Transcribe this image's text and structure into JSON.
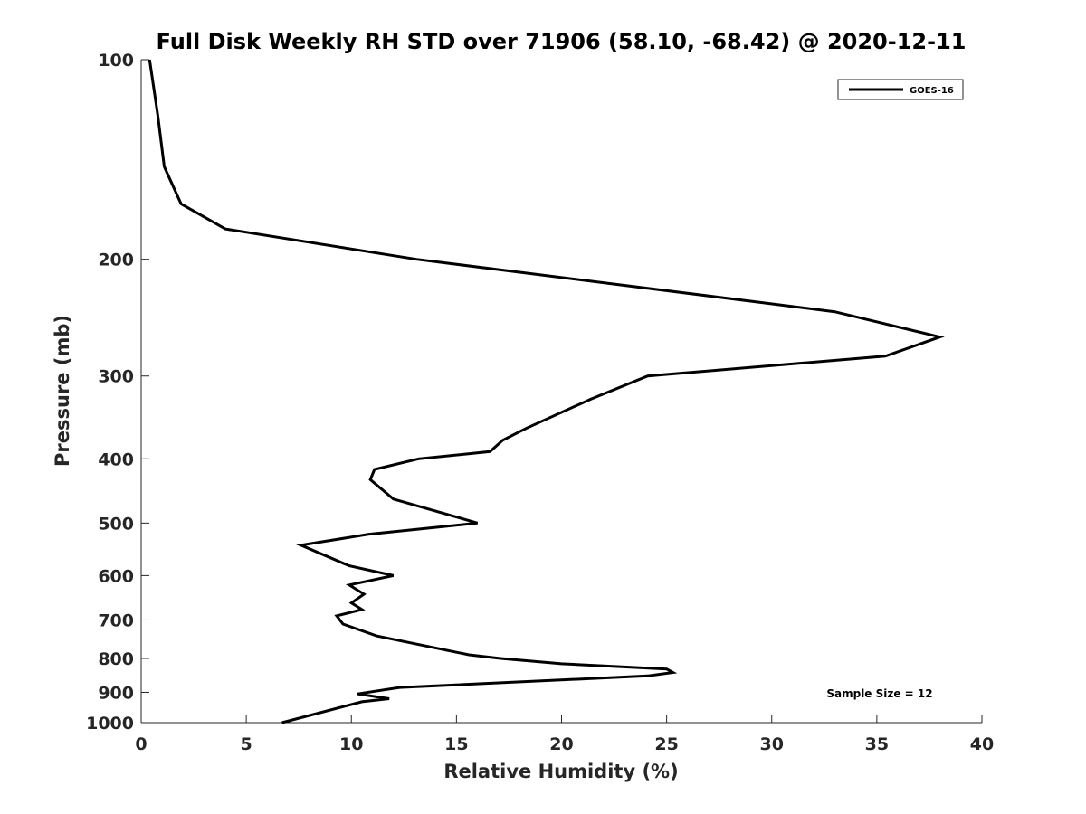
{
  "chart_data": {
    "type": "line",
    "title": "Full Disk Weekly RH STD over 71906 (58.10, -68.42) @ 2020-12-11",
    "xlabel": "Relative Humidity (%)",
    "ylabel": "Pressure (mb)",
    "xlim": [
      0,
      40
    ],
    "ylim": [
      100,
      1000
    ],
    "y_scale": "log",
    "y_reversed": true,
    "grid": false,
    "legend_position": "top-right",
    "x_ticks": [
      "0",
      "5",
      "10",
      "15",
      "20",
      "25",
      "30",
      "35",
      "40"
    ],
    "y_ticks": [
      "100",
      "200",
      "300",
      "400",
      "500",
      "600",
      "700",
      "800",
      "900",
      "1000"
    ],
    "series": [
      {
        "name": "GOES-16",
        "color": "#000000",
        "x": [
          0.4,
          0.8,
          1.1,
          1.9,
          4.0,
          13.1,
          33.0,
          38.0,
          35.4,
          24.1,
          21.4,
          18.3,
          17.2,
          16.6,
          13.2,
          11.1,
          10.9,
          12.0,
          16.0,
          10.8,
          7.6,
          9.9,
          12.0,
          9.9,
          10.6,
          10.0,
          10.5,
          9.3,
          9.6,
          11.2,
          15.6,
          17.1,
          20.0,
          25.0,
          25.3,
          24.1,
          12.3,
          10.3,
          11.8,
          10.5,
          6.7
        ],
        "y": [
          100,
          122,
          145,
          165,
          180,
          200,
          240,
          262,
          280,
          300,
          325,
          360,
          375,
          390,
          400,
          415,
          430,
          460,
          500,
          520,
          540,
          580,
          600,
          620,
          640,
          660,
          675,
          690,
          710,
          740,
          790,
          800,
          815,
          830,
          840,
          850,
          885,
          905,
          920,
          930,
          1000
        ]
      }
    ],
    "annotations": [
      "Sample Size = 12"
    ]
  }
}
